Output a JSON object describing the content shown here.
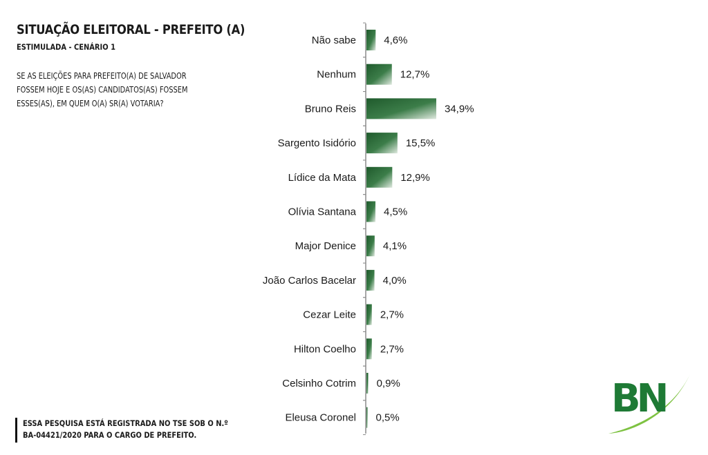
{
  "header": {
    "title": "SITUAÇÃO ELEITORAL - PREFEITO (A)",
    "subtitle": "ESTIMULADA - CENÁRIO 1",
    "question_lines": [
      "SE AS ELEIÇÕES PARA PREFEITO(A) DE SALVADOR",
      "FOSSEM HOJE E OS(AS) CANDIDATOS(AS) FOSSEM",
      "ESSES(AS), EM QUEM O(A) SR(A) VOTARIA?"
    ]
  },
  "footer": {
    "lines": [
      "ESSA PESQUISA ESTÁ REGISTRADA NO TSE SOB O N.º",
      "BA-04421/2020 PARA O CARGO DE PREFEITO."
    ]
  },
  "logo": {
    "text": "BN",
    "colors": {
      "green": "#1e7a35",
      "lime": "#7ec242"
    }
  },
  "chart_data": {
    "type": "bar",
    "orientation": "horizontal",
    "categories": [
      "Não sabe",
      "Nenhum",
      "Bruno Reis",
      "Sargento Isidório",
      "Lídice da Mata",
      "Olívia Santana",
      "Major Denice",
      "João Carlos Bacelar",
      "Cezar Leite",
      "Hilton Coelho",
      "Celsinho Cotrim",
      "Eleusa Coronel"
    ],
    "values": [
      4.6,
      12.7,
      34.9,
      15.5,
      12.9,
      4.5,
      4.1,
      4.0,
      2.7,
      2.7,
      0.9,
      0.5
    ],
    "value_labels": [
      "4,6%",
      "12,7%",
      "34,9%",
      "15,5%",
      "12,9%",
      "4,5%",
      "4,1%",
      "4,0%",
      "2,7%",
      "2,7%",
      "0,9%",
      "0,5%"
    ],
    "bar_color": "#2e6b3a",
    "grid": false,
    "legend": "none"
  }
}
